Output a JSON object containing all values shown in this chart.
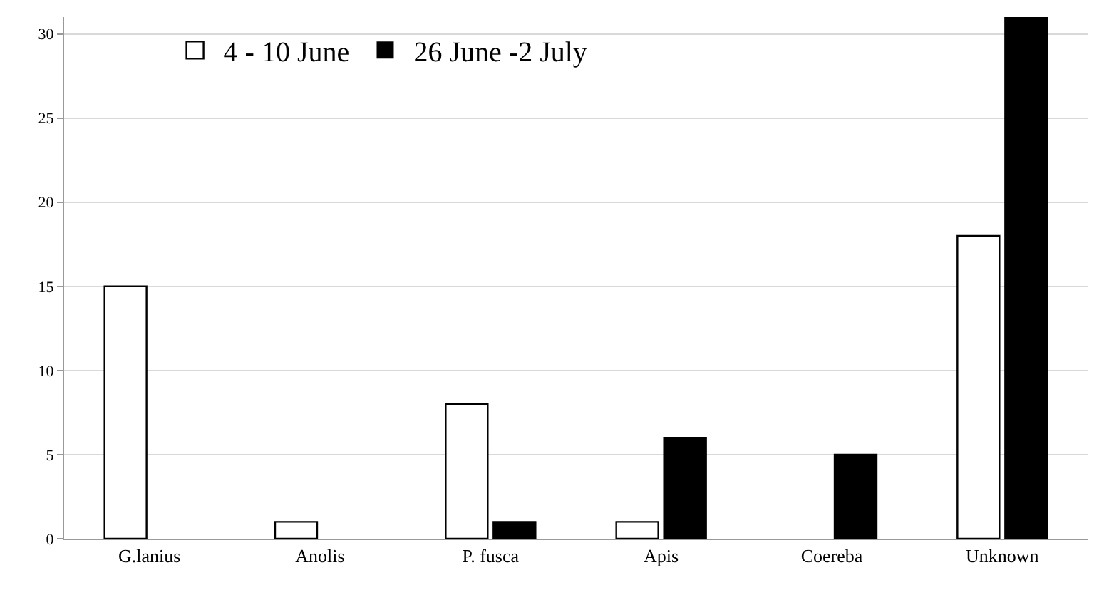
{
  "chart_data": {
    "type": "bar",
    "categories": [
      "G.lanius",
      "Anolis",
      "P. fusca",
      "Apis",
      "Coereba",
      "Unknown"
    ],
    "series": [
      {
        "name": "4 - 10 June",
        "color": "#ffffff",
        "values": [
          15,
          1,
          8,
          1,
          0,
          18
        ]
      },
      {
        "name": "26 June -2 July",
        "color": "#000000",
        "values": [
          0,
          0,
          1,
          6,
          5,
          31
        ]
      }
    ],
    "ylim": [
      0,
      31
    ],
    "yticks": [
      0,
      5,
      10,
      15,
      20,
      25,
      30
    ],
    "grid": "y",
    "legend": "top left"
  }
}
